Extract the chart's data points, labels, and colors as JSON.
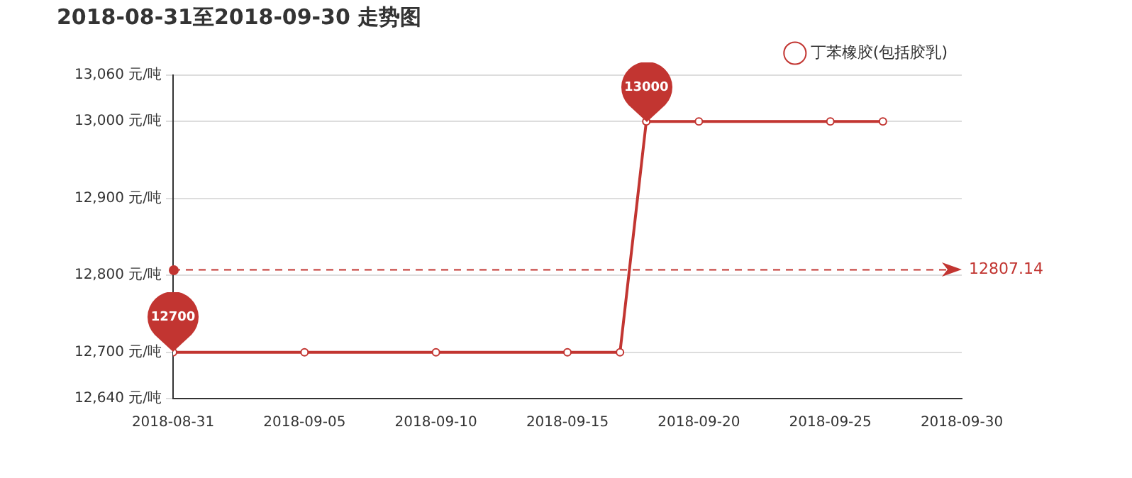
{
  "chart_data": {
    "type": "line",
    "title": "2018-08-31至2018-09-30 走势图",
    "x": [
      "2018-08-31",
      "2018-09-05",
      "2018-09-10",
      "2018-09-15",
      "2018-09-17",
      "2018-09-18",
      "2018-09-20",
      "2018-09-25",
      "2018-09-27"
    ],
    "series": [
      {
        "name": "丁苯橡胶(包括胶乳)",
        "color": "#c23531",
        "values": [
          12700,
          12700,
          12700,
          12700,
          12700,
          13000,
          13000,
          13000,
          13000
        ]
      }
    ],
    "xlim": [
      "2018-08-31",
      "2018-09-30"
    ],
    "xticks": [
      "2018-08-31",
      "2018-09-05",
      "2018-09-10",
      "2018-09-15",
      "2018-09-20",
      "2018-09-25",
      "2018-09-30"
    ],
    "ylim": [
      12640,
      13060
    ],
    "yticks": [
      {
        "value": 12640,
        "label": "12,640 元/吨"
      },
      {
        "value": 12700,
        "label": "12,700 元/吨"
      },
      {
        "value": 12800,
        "label": "12,800 元/吨"
      },
      {
        "value": 12900,
        "label": "12,900 元/吨"
      },
      {
        "value": 13000,
        "label": "13,000 元/吨"
      },
      {
        "value": 13060,
        "label": "13,060 元/吨"
      }
    ],
    "ref_lines": [
      {
        "axis": "y",
        "value": 12807.14,
        "label": "12807.14",
        "color": "#c23531",
        "line_style": "dashed"
      }
    ],
    "annotations": [
      {
        "text": "13000",
        "x": "2018-09-18",
        "y": 13000
      },
      {
        "text": "12700",
        "x": "2018-08-31",
        "y": 12700
      }
    ],
    "grid": "y",
    "legend": "top right",
    "marker": "circle",
    "line_style": "solid"
  }
}
